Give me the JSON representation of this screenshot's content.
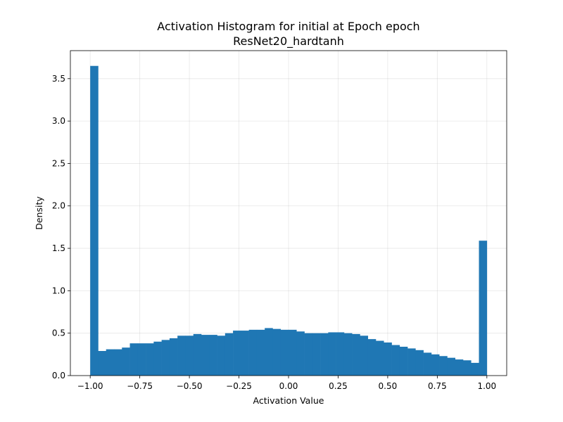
{
  "chart_data": {
    "type": "bar",
    "title": "Activation Histogram for initial at Epoch epoch",
    "subtitle": "ResNet20_hardtanh",
    "xlabel": "Activation Value",
    "ylabel": "Density",
    "xlim": [
      -1.1,
      1.1
    ],
    "ylim": [
      0,
      3.83
    ],
    "xticks": [
      -1.0,
      -0.75,
      -0.5,
      -0.25,
      0.0,
      0.25,
      0.5,
      0.75,
      1.0
    ],
    "xtick_labels": [
      "−1.00",
      "−0.75",
      "−0.50",
      "−0.25",
      "0.00",
      "0.25",
      "0.50",
      "0.75",
      "1.00"
    ],
    "yticks": [
      0.0,
      0.5,
      1.0,
      1.5,
      2.0,
      2.5,
      3.0,
      3.5
    ],
    "ytick_labels": [
      "0.0",
      "0.5",
      "1.0",
      "1.5",
      "2.0",
      "2.5",
      "3.0",
      "3.5"
    ],
    "grid": true,
    "bar_color": "#1f77b4",
    "bin_range": [
      -1.0,
      1.0
    ],
    "values": [
      3.65,
      0.29,
      0.31,
      0.31,
      0.33,
      0.38,
      0.38,
      0.38,
      0.4,
      0.42,
      0.44,
      0.47,
      0.47,
      0.49,
      0.48,
      0.48,
      0.47,
      0.5,
      0.53,
      0.53,
      0.54,
      0.54,
      0.56,
      0.55,
      0.54,
      0.54,
      0.52,
      0.5,
      0.5,
      0.5,
      0.51,
      0.51,
      0.5,
      0.49,
      0.47,
      0.43,
      0.41,
      0.39,
      0.36,
      0.34,
      0.32,
      0.3,
      0.27,
      0.25,
      0.23,
      0.21,
      0.19,
      0.18,
      0.15,
      1.59
    ]
  }
}
